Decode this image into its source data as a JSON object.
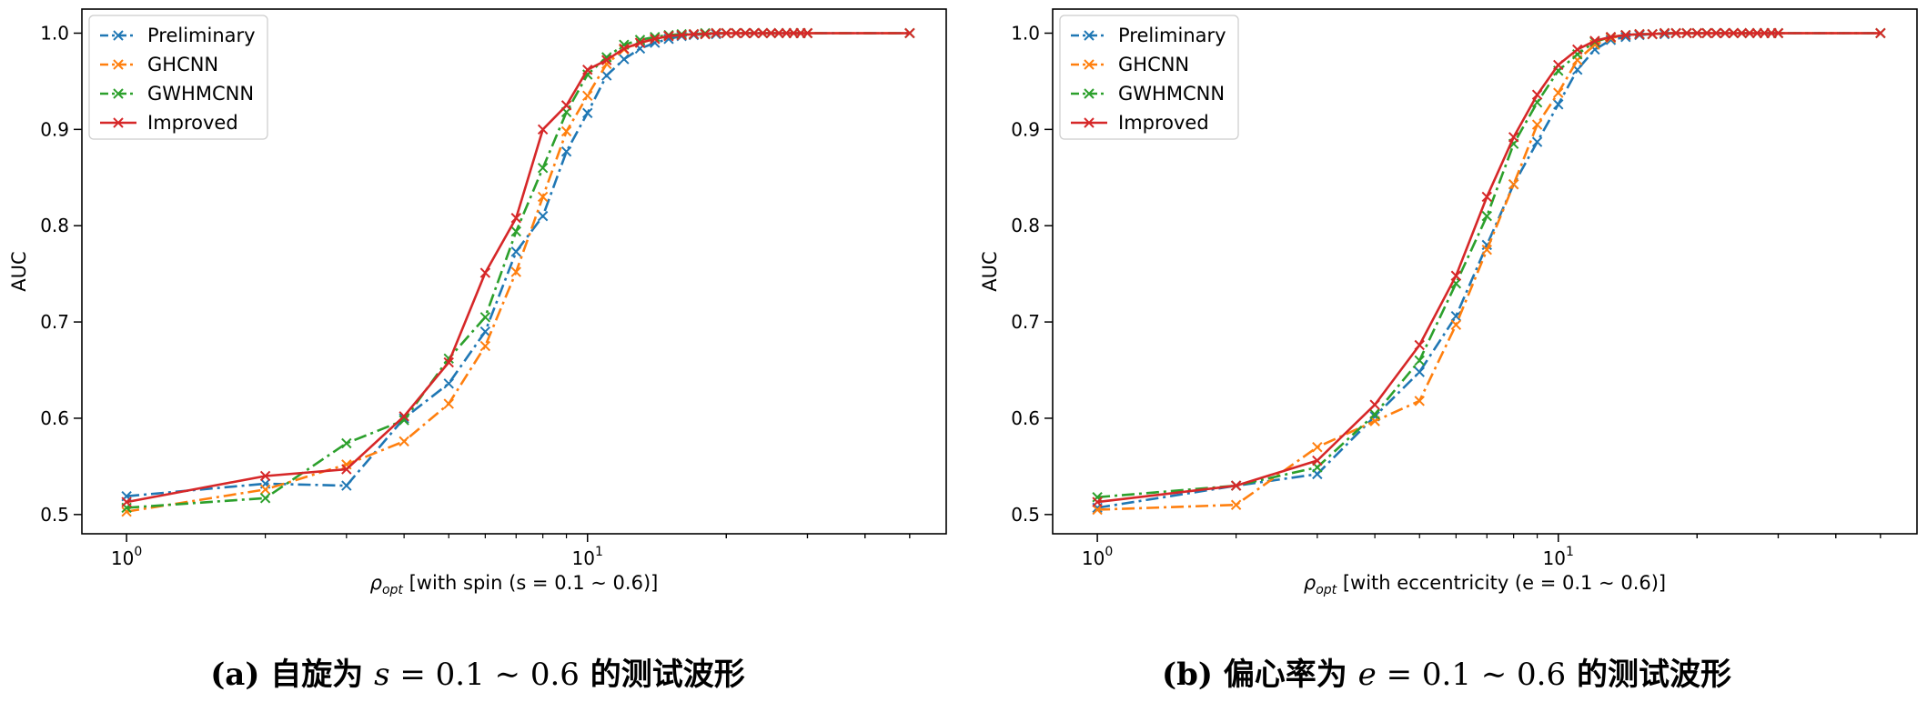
{
  "chart_data": [
    {
      "type": "line",
      "xscale": "log",
      "xlim": [
        0.8,
        60
      ],
      "ylim": [
        0.48,
        1.025
      ],
      "ylabel": "AUC",
      "xlabel_prefix": "ρ",
      "xlabel_sub": "opt",
      "xlabel_text": " [with spin (s = 0.1 ∼ 0.6)]",
      "xticks": [
        {
          "value": 1,
          "base": "10",
          "exp": "0"
        },
        {
          "value": 10,
          "base": "10",
          "exp": "1"
        }
      ],
      "yticks": [
        "0.5",
        "0.6",
        "0.7",
        "0.8",
        "0.9",
        "1.0"
      ],
      "legend_position": "upper-left",
      "caption": {
        "label": "(a) 自旋为 ",
        "var": "s",
        "eq": " = ",
        "range": "0.1 ∼ 0.6",
        "rest": " 的测试波形"
      },
      "x": [
        1,
        2,
        3,
        4,
        5,
        6,
        7,
        8,
        9,
        10,
        11,
        12,
        13,
        14,
        15,
        16,
        17,
        18,
        19,
        20,
        21,
        22,
        23,
        24,
        25,
        26,
        27,
        28,
        29,
        30,
        50
      ],
      "series": [
        {
          "name": "Preliminary",
          "color": "#1f77b4",
          "dash": "dashdot",
          "values": [
            0.519,
            0.532,
            0.53,
            0.6,
            0.636,
            0.69,
            0.773,
            0.81,
            0.877,
            0.917,
            0.956,
            0.973,
            0.984,
            0.99,
            0.994,
            0.997,
            0.998,
            0.999,
            0.999,
            1.0,
            1.0,
            1.0,
            1.0,
            1.0,
            1.0,
            1.0,
            1.0,
            1.0,
            1.0,
            1.0,
            1.0
          ]
        },
        {
          "name": "GHCNN",
          "color": "#ff7f0e",
          "dash": "dashdot",
          "values": [
            0.503,
            0.526,
            0.552,
            0.576,
            0.615,
            0.675,
            0.752,
            0.83,
            0.898,
            0.935,
            0.968,
            0.983,
            0.99,
            0.994,
            0.997,
            0.998,
            0.999,
            0.999,
            1.0,
            1.0,
            1.0,
            1.0,
            1.0,
            1.0,
            1.0,
            1.0,
            1.0,
            1.0,
            1.0,
            1.0,
            1.0
          ]
        },
        {
          "name": "GWHMCNN",
          "color": "#2ca02c",
          "dash": "dashdot",
          "values": [
            0.507,
            0.517,
            0.574,
            0.598,
            0.662,
            0.705,
            0.794,
            0.86,
            0.918,
            0.957,
            0.975,
            0.988,
            0.993,
            0.996,
            0.998,
            0.999,
            0.999,
            1.0,
            1.0,
            1.0,
            1.0,
            1.0,
            1.0,
            1.0,
            1.0,
            1.0,
            1.0,
            1.0,
            1.0,
            1.0,
            1.0
          ]
        },
        {
          "name": "Improved",
          "color": "#d62728",
          "dash": "solid",
          "values": [
            0.513,
            0.54,
            0.547,
            0.602,
            0.658,
            0.751,
            0.808,
            0.9,
            0.925,
            0.962,
            0.972,
            0.984,
            0.99,
            0.994,
            0.997,
            0.998,
            0.999,
            0.999,
            1.0,
            1.0,
            1.0,
            1.0,
            1.0,
            1.0,
            1.0,
            1.0,
            1.0,
            1.0,
            1.0,
            1.0,
            1.0
          ]
        }
      ]
    },
    {
      "type": "line",
      "xscale": "log",
      "xlim": [
        0.8,
        60
      ],
      "ylim": [
        0.48,
        1.025
      ],
      "ylabel": "AUC",
      "xlabel_prefix": "ρ",
      "xlabel_sub": "opt",
      "xlabel_text": " [with eccentricity (e = 0.1 ∼ 0.6)]",
      "xticks": [
        {
          "value": 1,
          "base": "10",
          "exp": "0"
        },
        {
          "value": 10,
          "base": "10",
          "exp": "1"
        }
      ],
      "yticks": [
        "0.5",
        "0.6",
        "0.7",
        "0.8",
        "0.9",
        "1.0"
      ],
      "legend_position": "upper-left",
      "caption": {
        "label": "(b) 偏心率为 ",
        "var": "e",
        "eq": " = ",
        "range": "0.1 ∼ 0.6",
        "rest": " 的测试波形"
      },
      "x": [
        1,
        2,
        3,
        4,
        5,
        6,
        7,
        8,
        9,
        10,
        11,
        12,
        13,
        14,
        15,
        16,
        17,
        18,
        19,
        20,
        21,
        22,
        23,
        24,
        25,
        26,
        27,
        28,
        29,
        30,
        50
      ],
      "series": [
        {
          "name": "Preliminary",
          "color": "#1f77b4",
          "dash": "dashdot",
          "values": [
            0.507,
            0.53,
            0.542,
            0.602,
            0.648,
            0.706,
            0.78,
            0.843,
            0.887,
            0.926,
            0.962,
            0.983,
            0.993,
            0.996,
            0.998,
            0.999,
            0.999,
            1.0,
            1.0,
            1.0,
            1.0,
            1.0,
            1.0,
            1.0,
            1.0,
            1.0,
            1.0,
            1.0,
            1.0,
            1.0,
            1.0
          ]
        },
        {
          "name": "GHCNN",
          "color": "#ff7f0e",
          "dash": "dashdot",
          "values": [
            0.505,
            0.51,
            0.57,
            0.597,
            0.618,
            0.697,
            0.775,
            0.843,
            0.905,
            0.938,
            0.972,
            0.988,
            0.995,
            0.998,
            0.999,
            0.999,
            1.0,
            1.0,
            1.0,
            1.0,
            1.0,
            1.0,
            1.0,
            1.0,
            1.0,
            1.0,
            1.0,
            1.0,
            1.0,
            1.0,
            1.0
          ]
        },
        {
          "name": "GWHMCNN",
          "color": "#2ca02c",
          "dash": "dashdot",
          "values": [
            0.518,
            0.53,
            0.549,
            0.604,
            0.66,
            0.74,
            0.81,
            0.885,
            0.928,
            0.961,
            0.978,
            0.991,
            0.996,
            0.998,
            0.999,
            0.999,
            1.0,
            1.0,
            1.0,
            1.0,
            1.0,
            1.0,
            1.0,
            1.0,
            1.0,
            1.0,
            1.0,
            1.0,
            1.0,
            1.0,
            1.0
          ]
        },
        {
          "name": "Improved",
          "color": "#d62728",
          "dash": "solid",
          "values": [
            0.513,
            0.53,
            0.556,
            0.614,
            0.676,
            0.748,
            0.83,
            0.892,
            0.936,
            0.967,
            0.983,
            0.992,
            0.996,
            0.998,
            0.999,
            0.999,
            1.0,
            1.0,
            1.0,
            1.0,
            1.0,
            1.0,
            1.0,
            1.0,
            1.0,
            1.0,
            1.0,
            1.0,
            1.0,
            1.0,
            1.0
          ]
        }
      ]
    }
  ]
}
